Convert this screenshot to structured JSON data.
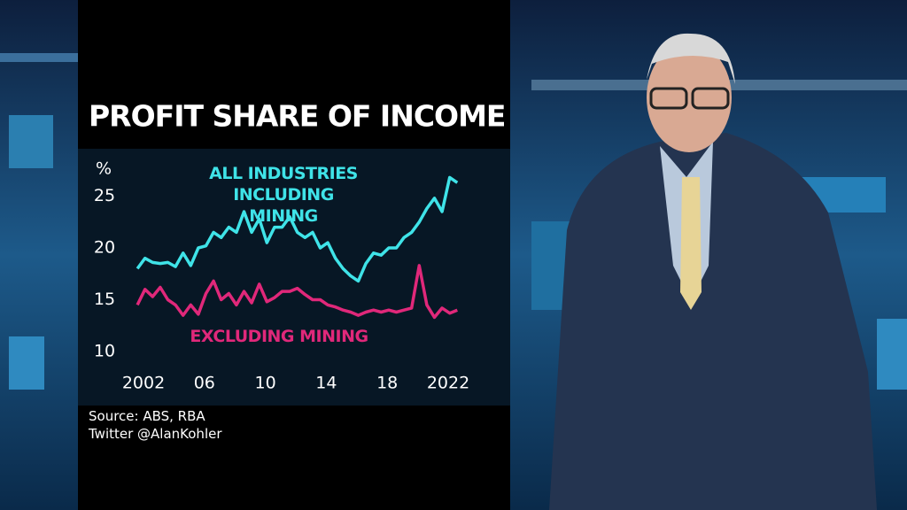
{
  "chart_data": {
    "type": "line",
    "title": "PROFIT SHARE OF INCOME",
    "y_label": "%",
    "x": [
      2001.6,
      2002.1,
      2002.6,
      2003.1,
      2003.6,
      2004.1,
      2004.6,
      2005.1,
      2005.6,
      2006.1,
      2006.6,
      2007.1,
      2007.6,
      2008.1,
      2008.6,
      2009.1,
      2009.6,
      2010.1,
      2010.6,
      2011.1,
      2011.6,
      2012.1,
      2012.6,
      2013.1,
      2013.6,
      2014.1,
      2014.6,
      2015.1,
      2015.6,
      2016.1,
      2016.6,
      2017.1,
      2017.6,
      2018.1,
      2018.6,
      2019.1,
      2019.6,
      2020.1,
      2020.6,
      2021.1,
      2021.6,
      2022.1,
      2022.6
    ],
    "series": [
      {
        "name": "ALL INDUSTRIES INCLUDING MINING",
        "color": "#3fe3e8",
        "values": [
          18.0,
          19.0,
          18.6,
          18.5,
          18.6,
          18.2,
          19.5,
          18.3,
          20.0,
          20.2,
          21.5,
          21.0,
          22.0,
          21.5,
          23.5,
          21.5,
          22.8,
          20.5,
          22.0,
          22.0,
          23.0,
          21.5,
          21.0,
          21.5,
          20.0,
          20.5,
          19.0,
          18.0,
          17.3,
          16.8,
          18.5,
          19.5,
          19.3,
          20.0,
          20.0,
          21.0,
          21.5,
          22.5,
          23.8,
          24.8,
          23.5,
          26.8,
          26.3
        ]
      },
      {
        "name": "EXCLUDING MINING",
        "color": "#e0287a",
        "values": [
          14.5,
          16.0,
          15.3,
          16.2,
          15.0,
          14.5,
          13.5,
          14.5,
          13.6,
          15.6,
          16.8,
          15.0,
          15.6,
          14.5,
          15.8,
          14.7,
          16.5,
          14.8,
          15.2,
          15.8,
          15.8,
          16.1,
          15.5,
          15.0,
          15.0,
          14.5,
          14.3,
          14.0,
          13.8,
          13.5,
          13.8,
          14.0,
          13.8,
          14.0,
          13.8,
          14.0,
          14.2,
          18.3,
          14.5,
          13.3,
          14.2,
          13.7,
          14.0
        ]
      }
    ],
    "xlim": [
      2001,
      2023
    ],
    "xticks": [
      2002,
      {
        "value": 2006,
        "label": "06"
      },
      {
        "value": 2010,
        "label": "10"
      },
      {
        "value": 2014,
        "label": "14"
      },
      {
        "value": 2018,
        "label": "18"
      },
      2022
    ],
    "ylim": [
      9,
      28
    ],
    "yticks": [
      10,
      15,
      20,
      25
    ],
    "grid": false,
    "source": "Source: ABS, RBA",
    "credit": "Twitter @AlanKohler"
  }
}
